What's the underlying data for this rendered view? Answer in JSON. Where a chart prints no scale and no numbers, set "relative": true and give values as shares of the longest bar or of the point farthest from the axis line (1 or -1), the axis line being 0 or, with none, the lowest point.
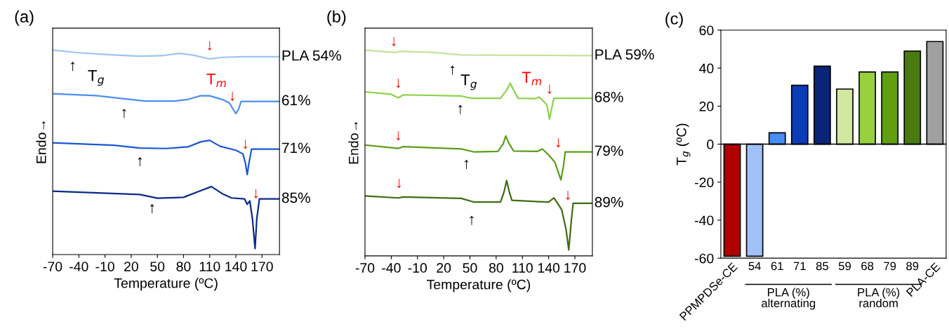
{
  "chart_data": [
    {
      "type": "line",
      "title": "(a)",
      "xlabel": "Temperature (ºC)",
      "ylabel": "Endo→",
      "relative": true,
      "xlim": [
        -70,
        190
      ],
      "xticks": [
        -70,
        -40,
        -10,
        20,
        50,
        80,
        110,
        140,
        170
      ],
      "tick_labels": "x",
      "series": [
        {
          "name": "PLA 54%",
          "color": "#9dc3f5",
          "x": [
            -70,
            -40,
            0,
            30,
            55,
            75,
            90,
            110,
            125,
            150,
            190
          ],
          "values": [
            1.0,
            0.986,
            0.975,
            0.969,
            0.971,
            0.983,
            0.975,
            0.955,
            0.963,
            0.966,
            0.966
          ]
        },
        {
          "name": "61%",
          "color": "#4d8ff0",
          "x": [
            -70,
            -20,
            10,
            36,
            70,
            85,
            100,
            110,
            125,
            133,
            137,
            140,
            143,
            146,
            190
          ],
          "values": [
            0.78,
            0.77,
            0.755,
            0.743,
            0.743,
            0.751,
            0.77,
            0.769,
            0.75,
            0.732,
            0.7,
            0.68,
            0.7,
            0.741,
            0.741
          ]
        },
        {
          "name": "71%",
          "color": "#1a56d6",
          "x": [
            -70,
            0,
            30,
            60,
            85,
            100,
            110,
            122,
            140,
            148,
            151,
            153,
            155,
            158,
            190
          ],
          "values": [
            0.533,
            0.52,
            0.506,
            0.504,
            0.512,
            0.538,
            0.545,
            0.515,
            0.495,
            0.477,
            0.43,
            0.373,
            0.43,
            0.501,
            0.501
          ]
        },
        {
          "name": "85%",
          "color": "#0a2a8a",
          "x": [
            -70,
            30,
            50,
            80,
            100,
            112,
            125,
            135,
            150,
            153,
            156,
            159,
            162,
            164,
            167,
            190
          ],
          "values": [
            0.289,
            0.272,
            0.254,
            0.258,
            0.292,
            0.312,
            0.275,
            0.255,
            0.25,
            0.223,
            0.24,
            0.15,
            0.0,
            0.15,
            0.25,
            0.25
          ]
        }
      ],
      "annotations": [
        "↑",
        "T$_{g}$",
        "↑",
        "↑",
        "↑",
        "↓",
        "T$_{m}$",
        "↓",
        "↓",
        "↓"
      ]
    },
    {
      "type": "line",
      "title": "(b)",
      "xlabel": "Temperature (ºC)",
      "ylabel": "Endo→",
      "relative": true,
      "xlim": [
        -70,
        190
      ],
      "xticks": [
        -70,
        -40,
        -10,
        20,
        50,
        80,
        110,
        140,
        170
      ],
      "tick_labels": "x",
      "series": [
        {
          "name": "PLA 59%",
          "color": "#c5e39a",
          "x": [
            -70,
            -35,
            -30,
            10,
            40,
            190
          ],
          "values": [
            1.0,
            0.988,
            0.994,
            0.988,
            0.976,
            0.972
          ]
        },
        {
          "name": "68%",
          "color": "#8dd14a",
          "x": [
            -70,
            -40,
            -32,
            -26,
            40,
            52,
            85,
            92,
            96,
            100,
            105,
            125,
            129,
            133,
            138,
            141,
            144,
            146,
            190
          ],
          "values": [
            0.791,
            0.779,
            0.761,
            0.776,
            0.77,
            0.759,
            0.759,
            0.8,
            0.835,
            0.8,
            0.759,
            0.757,
            0.765,
            0.749,
            0.726,
            0.654,
            0.72,
            0.759,
            0.759
          ]
        },
        {
          "name": "79%",
          "color": "#5a9e1a",
          "x": [
            -70,
            -32,
            -26,
            40,
            55,
            82,
            88,
            91,
            95,
            100,
            127,
            133,
            140,
            147,
            154,
            157,
            159,
            190
          ],
          "values": [
            0.525,
            0.508,
            0.517,
            0.505,
            0.49,
            0.493,
            0.53,
            0.57,
            0.53,
            0.495,
            0.493,
            0.505,
            0.475,
            0.44,
            0.35,
            0.42,
            0.49,
            0.49
          ]
        },
        {
          "name": "89%",
          "color": "#3d6e12",
          "x": [
            -70,
            -32,
            -26,
            40,
            55,
            85,
            89,
            92,
            95,
            98,
            140,
            146,
            150,
            155,
            160,
            163,
            166,
            168,
            190
          ],
          "values": [
            0.27,
            0.26,
            0.265,
            0.258,
            0.239,
            0.239,
            0.29,
            0.347,
            0.29,
            0.248,
            0.239,
            0.26,
            0.235,
            0.2,
            0.1,
            0.0,
            0.15,
            0.233,
            0.233
          ]
        }
      ],
      "annotations": [
        "↓",
        "↓",
        "↓",
        "↓",
        "↑",
        "T$_{g}$",
        "↑",
        "↑",
        "↑",
        "T$_{m}$",
        "↓",
        "↓",
        "↓"
      ]
    },
    {
      "type": "bar",
      "title": "(c)",
      "ylabel": "T$_{g}$ (ºC)",
      "categories": [
        "PPMPDSe-CE",
        "54",
        "61",
        "71",
        "85",
        "59",
        "68",
        "79",
        "89",
        "PLA-CE"
      ],
      "values": [
        -59,
        -59,
        6,
        31,
        41,
        29,
        38,
        38,
        49,
        54
      ],
      "colors": [
        "#b00000",
        "#a0c0f8",
        "#4a8cf0",
        "#0a3cb8",
        "#0a2478",
        "#d0e8a0",
        "#98d040",
        "#60a010",
        "#4a7a10",
        "#a0a0a0"
      ],
      "ylim": [
        -60,
        60
      ],
      "yticks": [
        -60,
        -40,
        -20,
        0,
        20,
        40,
        60
      ],
      "ref_lines": [
        {
          "axis": "y",
          "value": 0,
          "color": "#000000"
        }
      ],
      "annotations": [
        "PLA (%)\nalternating",
        "PLA (%)\nrandom"
      ]
    }
  ]
}
